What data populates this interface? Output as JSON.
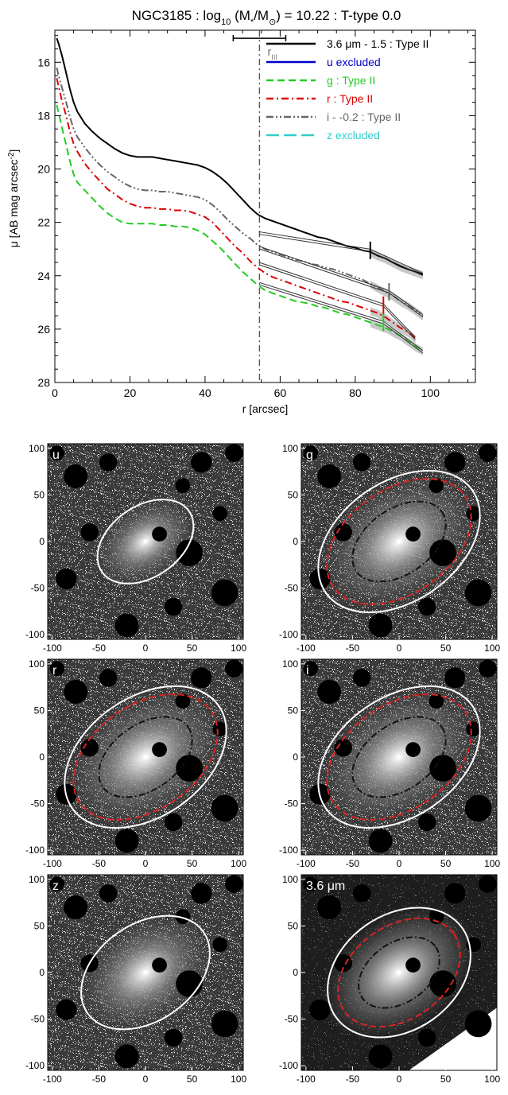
{
  "chart_data": [
    {
      "type": "line",
      "title_parts": {
        "main": "NGC3185 : log",
        "sub": "10",
        "after_sub": " (M",
        "star": "*",
        "slash": "/M",
        "sun": "⊙",
        "value": ") = 10.22 : T-type 0.0"
      },
      "xlabel": "r [arcsec]",
      "ylabel": "μ [AB mag arcsec",
      "ylabel_sup": "-2",
      "ylabel_end": "]",
      "xlim": [
        0,
        112
      ],
      "ylim": [
        28,
        14.8
      ],
      "y_inverted": true,
      "xticks": [
        0,
        20,
        40,
        60,
        80,
        100
      ],
      "yticks": [
        16,
        18,
        20,
        22,
        24,
        26,
        28
      ],
      "grid": false,
      "legend_position": "top-right",
      "vline_x": 54.5,
      "r_label": "r",
      "r_label_sub": "III",
      "r_errorbar": [
        47.5,
        61.5
      ],
      "r_errorbar_y": 15.1,
      "legend": [
        {
          "label": "3.6 μm - 1.5 : Type II",
          "color": "#000000",
          "dash": "solid"
        },
        {
          "label": "u excluded",
          "color": "#0000cc",
          "dash": "solid"
        },
        {
          "label": "g : Type II",
          "color": "#22cc22",
          "dash": "dashed"
        },
        {
          "label": "r : Type II",
          "color": "#dd0000",
          "dash": "dashdot"
        },
        {
          "label": "i - -0.2 : Type II",
          "color": "#666666",
          "dash": "dashdotdot"
        },
        {
          "label": "z excluded",
          "color": "#33cccc",
          "dash": "longdash"
        }
      ],
      "series": [
        {
          "name": "3.6 μm - 1.5 : Type II",
          "color": "#000000",
          "dash": "solid",
          "x": [
            0.5,
            1,
            2,
            3,
            4,
            5,
            6,
            8,
            10,
            12,
            14,
            16,
            18,
            20,
            22,
            24,
            26,
            28,
            30,
            32,
            34,
            36,
            38,
            40,
            42,
            44,
            46,
            48,
            50,
            52,
            54,
            56,
            58,
            60,
            62,
            64,
            66,
            68,
            70,
            72,
            74,
            76,
            78,
            80,
            82,
            84,
            86,
            88,
            90,
            92,
            94,
            96,
            98
          ],
          "y": [
            15.1,
            15.3,
            15.8,
            16.4,
            17.0,
            17.5,
            17.85,
            18.3,
            18.6,
            18.85,
            19.05,
            19.25,
            19.4,
            19.5,
            19.55,
            19.55,
            19.55,
            19.6,
            19.65,
            19.7,
            19.75,
            19.8,
            19.85,
            19.95,
            20.1,
            20.3,
            20.55,
            20.85,
            21.15,
            21.45,
            21.7,
            21.85,
            21.95,
            22.05,
            22.15,
            22.25,
            22.35,
            22.45,
            22.55,
            22.6,
            22.7,
            22.8,
            22.9,
            22.95,
            23.05,
            23.1,
            23.25,
            23.35,
            23.5,
            23.65,
            23.75,
            23.85,
            23.95
          ]
        },
        {
          "name": "i - -0.2 : Type II",
          "color": "#666666",
          "dash": "dashdotdot",
          "x": [
            0.5,
            1,
            2,
            3,
            4,
            5,
            6,
            8,
            10,
            12,
            14,
            16,
            18,
            20,
            22,
            24,
            26,
            28,
            30,
            32,
            34,
            36,
            38,
            40,
            42,
            44,
            46,
            48,
            50,
            52,
            54,
            56,
            58,
            60,
            62,
            64,
            66,
            68,
            70,
            72,
            74,
            76,
            78,
            80,
            82,
            84,
            86,
            88,
            90,
            92,
            94,
            96,
            98
          ],
          "y": [
            16.2,
            16.5,
            17.0,
            17.5,
            18.05,
            18.5,
            18.8,
            19.2,
            19.55,
            19.85,
            20.1,
            20.3,
            20.5,
            20.65,
            20.75,
            20.8,
            20.8,
            20.85,
            20.85,
            20.9,
            20.95,
            21.0,
            21.05,
            21.15,
            21.35,
            21.6,
            21.9,
            22.15,
            22.4,
            22.6,
            22.85,
            23.0,
            23.1,
            23.2,
            23.3,
            23.4,
            23.45,
            23.55,
            23.6,
            23.7,
            23.75,
            23.85,
            23.95,
            24.05,
            24.15,
            24.3,
            24.45,
            24.6,
            24.75,
            24.95,
            25.1,
            25.3,
            25.5
          ]
        },
        {
          "name": "r : Type II",
          "color": "#dd0000",
          "dash": "dashdot",
          "x": [
            0.5,
            1,
            2,
            3,
            4,
            5,
            6,
            8,
            10,
            12,
            14,
            16,
            18,
            20,
            22,
            24,
            26,
            28,
            30,
            32,
            34,
            36,
            38,
            40,
            42,
            44,
            46,
            48,
            50,
            52,
            54,
            56,
            58,
            60,
            62,
            64,
            66,
            68,
            70,
            72,
            74,
            76,
            78,
            80,
            82,
            84,
            86,
            88,
            90,
            92,
            94,
            96
          ],
          "y": [
            16.6,
            16.9,
            17.5,
            18.0,
            18.6,
            19.05,
            19.35,
            19.8,
            20.15,
            20.45,
            20.75,
            20.95,
            21.15,
            21.3,
            21.4,
            21.45,
            21.45,
            21.5,
            21.5,
            21.55,
            21.55,
            21.6,
            21.7,
            21.8,
            22.0,
            22.3,
            22.6,
            22.9,
            23.15,
            23.45,
            23.7,
            23.9,
            24.05,
            24.15,
            24.25,
            24.35,
            24.45,
            24.55,
            24.65,
            24.75,
            24.85,
            24.95,
            25.0,
            25.1,
            25.2,
            25.3,
            25.4,
            25.55,
            25.75,
            25.95,
            26.1,
            26.35
          ]
        },
        {
          "name": "g : Type II",
          "color": "#22cc22",
          "dash": "dashed",
          "x": [
            0.5,
            1,
            2,
            3,
            4,
            5,
            6,
            8,
            10,
            12,
            14,
            16,
            18,
            20,
            22,
            24,
            26,
            28,
            30,
            32,
            34,
            36,
            38,
            40,
            42,
            44,
            46,
            48,
            50,
            52,
            54,
            56,
            58,
            60,
            62,
            64,
            66,
            68,
            70,
            72,
            74,
            76,
            78,
            80,
            82,
            84,
            86,
            88,
            90,
            92,
            94,
            96,
            98
          ],
          "y": [
            17.6,
            17.9,
            18.5,
            19.1,
            19.7,
            20.2,
            20.5,
            20.8,
            21.1,
            21.4,
            21.65,
            21.85,
            22.0,
            22.05,
            22.05,
            22.05,
            22.05,
            22.1,
            22.1,
            22.15,
            22.15,
            22.2,
            22.3,
            22.45,
            22.7,
            22.95,
            23.25,
            23.55,
            23.85,
            24.1,
            24.35,
            24.55,
            24.65,
            24.75,
            24.85,
            24.95,
            25.0,
            25.05,
            25.15,
            25.2,
            25.3,
            25.4,
            25.45,
            25.55,
            25.65,
            25.75,
            25.85,
            25.95,
            26.1,
            26.25,
            26.45,
            26.65,
            26.8
          ]
        }
      ],
      "fits": [
        {
          "inner": [
            54.5,
            22.4,
            84,
            23.05
          ],
          "outer": [
            84,
            23.05,
            98,
            23.95
          ]
        },
        {
          "inner": [
            54.5,
            22.95,
            89,
            24.6
          ],
          "outer": [
            89,
            24.6,
            98,
            25.5
          ]
        },
        {
          "inner": [
            54.5,
            23.55,
            87.5,
            25.1
          ],
          "outer": [
            87.5,
            25.1,
            96,
            26.35
          ]
        },
        {
          "inner": [
            54.5,
            24.3,
            87.5,
            25.75
          ],
          "outer": [
            87.5,
            25.75,
            98,
            26.85
          ]
        }
      ],
      "break_markers": [
        {
          "x": 84,
          "y": 23.05,
          "color": "#000000"
        },
        {
          "x": 89,
          "y": 24.6,
          "color": "#666666"
        },
        {
          "x": 87.5,
          "y": 25.1,
          "color": "#dd0000"
        },
        {
          "x": 87.5,
          "y": 25.75,
          "color": "#22cc22"
        }
      ]
    },
    {
      "type": "image-grid",
      "xlim": [
        -105,
        105
      ],
      "ylim": [
        -105,
        105
      ],
      "xticks": [
        -100,
        -50,
        0,
        50,
        100
      ],
      "yticks": [
        100,
        50,
        0,
        -50,
        -100
      ],
      "panels": [
        {
          "label": "u",
          "label_color": "#ffffff",
          "ellipses": [
            {
              "a": 57,
              "b": 38,
              "cx": 0,
              "cy": 0,
              "angle": -35,
              "color": "#ffffff",
              "dash": "solid"
            }
          ]
        },
        {
          "label": "g",
          "label_color": "#ffffff",
          "ellipses": [
            {
              "a": 96,
              "b": 64,
              "cx": 0,
              "cy": 0,
              "angle": -35,
              "color": "#ffffff",
              "dash": "solid"
            },
            {
              "a": 86,
              "b": 56,
              "cx": 0,
              "cy": 0,
              "angle": -35,
              "color": "#dd2222",
              "dash": "dashed"
            },
            {
              "a": 56,
              "b": 35,
              "cx": 0,
              "cy": 0,
              "angle": -35,
              "color": "#111111",
              "dash": "dashdot"
            }
          ]
        },
        {
          "label": "r",
          "label_color": "#ffffff",
          "ellipses": [
            {
              "a": 96,
              "b": 64,
              "cx": 0,
              "cy": 0,
              "angle": -35,
              "color": "#ffffff",
              "dash": "solid"
            },
            {
              "a": 86,
              "b": 56,
              "cx": 0,
              "cy": 0,
              "angle": -35,
              "color": "#dd2222",
              "dash": "dashed"
            },
            {
              "a": 56,
              "b": 35,
              "cx": 0,
              "cy": 0,
              "angle": -35,
              "color": "#111111",
              "dash": "dashdot"
            }
          ]
        },
        {
          "label": "i",
          "label_color": "#ffffff",
          "ellipses": [
            {
              "a": 96,
              "b": 64,
              "cx": 0,
              "cy": 0,
              "angle": -35,
              "color": "#ffffff",
              "dash": "solid"
            },
            {
              "a": 86,
              "b": 56,
              "cx": 0,
              "cy": 0,
              "angle": -35,
              "color": "#dd2222",
              "dash": "dashed"
            },
            {
              "a": 56,
              "b": 35,
              "cx": 0,
              "cy": 0,
              "angle": -35,
              "color": "#111111",
              "dash": "dashdot"
            }
          ]
        },
        {
          "label": "z",
          "label_color": "#ffffff",
          "ellipses": [
            {
              "a": 76,
              "b": 52,
              "cx": 0,
              "cy": 0,
              "angle": -35,
              "color": "#ffffff",
              "dash": "solid"
            }
          ]
        },
        {
          "label": "3.6 μm",
          "label_color": "#ffffff",
          "ellipses": [
            {
              "a": 83,
              "b": 62,
              "cx": 0,
              "cy": 0,
              "angle": -35,
              "color": "#ffffff",
              "dash": "solid"
            },
            {
              "a": 72,
              "b": 50,
              "cx": 0,
              "cy": 0,
              "angle": -35,
              "color": "#dd2222",
              "dash": "dashed"
            },
            {
              "a": 48,
              "b": 32,
              "cx": 0,
              "cy": 0,
              "angle": -35,
              "color": "#111111",
              "dash": "dashdot"
            }
          ]
        }
      ]
    }
  ]
}
